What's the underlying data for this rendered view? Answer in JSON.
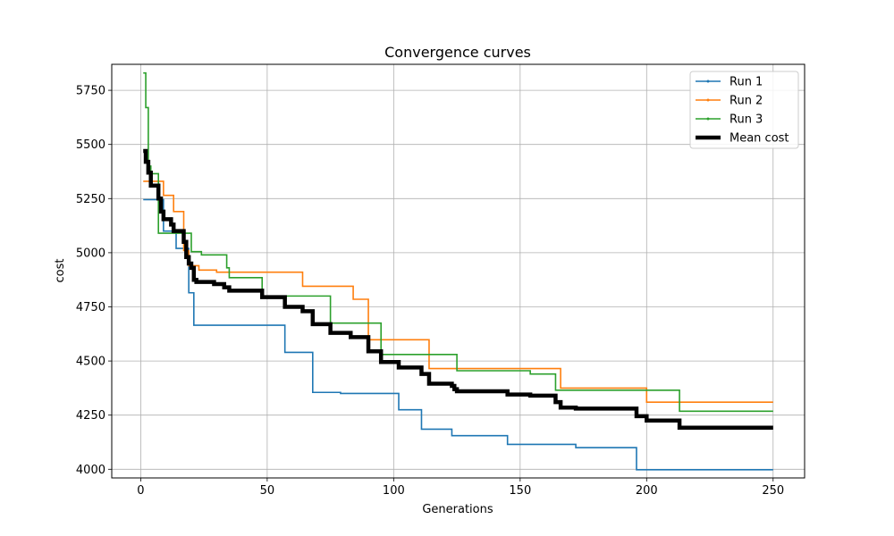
{
  "chart_data": {
    "type": "line",
    "title": "Convergence curves",
    "xlabel": "Generations",
    "ylabel": "cost",
    "xlim": [
      -11.45,
      262.45
    ],
    "ylim": [
      3960,
      5870
    ],
    "xticks": [
      0,
      50,
      100,
      150,
      200,
      250
    ],
    "yticks": [
      4000,
      4250,
      4500,
      4750,
      5000,
      5250,
      5500,
      5750
    ],
    "grid": true,
    "legend_position": "top-right",
    "series": [
      {
        "name": "Run 1",
        "color": "#1f77b4",
        "style": "step",
        "points": [
          [
            1,
            5245
          ],
          [
            8,
            5245
          ],
          [
            9,
            5100
          ],
          [
            13,
            5100
          ],
          [
            14,
            5020
          ],
          [
            18,
            5020
          ],
          [
            19,
            4815
          ],
          [
            20,
            4815
          ],
          [
            21,
            4665
          ],
          [
            56,
            4665
          ],
          [
            57,
            4540
          ],
          [
            67,
            4540
          ],
          [
            68,
            4355
          ],
          [
            78,
            4355
          ],
          [
            79,
            4350
          ],
          [
            101,
            4350
          ],
          [
            102,
            4275
          ],
          [
            110,
            4275
          ],
          [
            111,
            4185
          ],
          [
            122,
            4185
          ],
          [
            123,
            4155
          ],
          [
            144,
            4155
          ],
          [
            145,
            4115
          ],
          [
            171,
            4115
          ],
          [
            172,
            4100
          ],
          [
            195,
            4100
          ],
          [
            196,
            3998
          ],
          [
            250,
            3998
          ]
        ]
      },
      {
        "name": "Run 2",
        "color": "#ff7f0e",
        "style": "step",
        "points": [
          [
            1,
            5330
          ],
          [
            8,
            5330
          ],
          [
            9,
            5265
          ],
          [
            12,
            5265
          ],
          [
            13,
            5190
          ],
          [
            16,
            5190
          ],
          [
            17,
            5010
          ],
          [
            18,
            5010
          ],
          [
            19,
            4940
          ],
          [
            22,
            4940
          ],
          [
            23,
            4920
          ],
          [
            29,
            4920
          ],
          [
            30,
            4910
          ],
          [
            63,
            4910
          ],
          [
            64,
            4845
          ],
          [
            83,
            4845
          ],
          [
            84,
            4785
          ],
          [
            89,
            4785
          ],
          [
            90,
            4598
          ],
          [
            113,
            4598
          ],
          [
            114,
            4465
          ],
          [
            165,
            4465
          ],
          [
            166,
            4375
          ],
          [
            199,
            4375
          ],
          [
            200,
            4310
          ],
          [
            250,
            4310
          ]
        ]
      },
      {
        "name": "Run 3",
        "color": "#2ca02c",
        "style": "step",
        "points": [
          [
            1,
            5830
          ],
          [
            2,
            5670
          ],
          [
            3,
            5400
          ],
          [
            4,
            5365
          ],
          [
            6,
            5365
          ],
          [
            7,
            5090
          ],
          [
            19,
            5090
          ],
          [
            20,
            5005
          ],
          [
            23,
            5005
          ],
          [
            24,
            4990
          ],
          [
            33,
            4990
          ],
          [
            34,
            4930
          ],
          [
            35,
            4885
          ],
          [
            47,
            4885
          ],
          [
            48,
            4800
          ],
          [
            74,
            4800
          ],
          [
            75,
            4675
          ],
          [
            94,
            4675
          ],
          [
            95,
            4530
          ],
          [
            124,
            4530
          ],
          [
            125,
            4455
          ],
          [
            153,
            4455
          ],
          [
            154,
            4440
          ],
          [
            163,
            4440
          ],
          [
            164,
            4365
          ],
          [
            212,
            4365
          ],
          [
            213,
            4268
          ],
          [
            250,
            4268
          ]
        ]
      },
      {
        "name": "Mean cost",
        "color": "#000000",
        "style": "step",
        "points": [
          [
            1,
            5470
          ],
          [
            2,
            5420
          ],
          [
            3,
            5370
          ],
          [
            4,
            5310
          ],
          [
            6,
            5310
          ],
          [
            7,
            5250
          ],
          [
            8,
            5190
          ],
          [
            9,
            5155
          ],
          [
            11,
            5155
          ],
          [
            12,
            5130
          ],
          [
            13,
            5100
          ],
          [
            16,
            5100
          ],
          [
            17,
            5050
          ],
          [
            18,
            4980
          ],
          [
            19,
            4950
          ],
          [
            20,
            4930
          ],
          [
            21,
            4875
          ],
          [
            22,
            4865
          ],
          [
            28,
            4865
          ],
          [
            29,
            4855
          ],
          [
            32,
            4855
          ],
          [
            33,
            4840
          ],
          [
            35,
            4825
          ],
          [
            47,
            4825
          ],
          [
            48,
            4795
          ],
          [
            56,
            4795
          ],
          [
            57,
            4750
          ],
          [
            63,
            4750
          ],
          [
            64,
            4730
          ],
          [
            67,
            4730
          ],
          [
            68,
            4670
          ],
          [
            74,
            4670
          ],
          [
            75,
            4630
          ],
          [
            82,
            4630
          ],
          [
            83,
            4610
          ],
          [
            89,
            4610
          ],
          [
            90,
            4545
          ],
          [
            94,
            4545
          ],
          [
            95,
            4495
          ],
          [
            101,
            4495
          ],
          [
            102,
            4470
          ],
          [
            110,
            4470
          ],
          [
            111,
            4440
          ],
          [
            113,
            4440
          ],
          [
            114,
            4395
          ],
          [
            122,
            4395
          ],
          [
            123,
            4385
          ],
          [
            124,
            4370
          ],
          [
            125,
            4360
          ],
          [
            144,
            4360
          ],
          [
            145,
            4345
          ],
          [
            153,
            4345
          ],
          [
            154,
            4340
          ],
          [
            163,
            4340
          ],
          [
            164,
            4310
          ],
          [
            165,
            4310
          ],
          [
            166,
            4285
          ],
          [
            171,
            4285
          ],
          [
            172,
            4280
          ],
          [
            195,
            4280
          ],
          [
            196,
            4245
          ],
          [
            199,
            4245
          ],
          [
            200,
            4225
          ],
          [
            212,
            4225
          ],
          [
            213,
            4192
          ],
          [
            250,
            4192
          ]
        ]
      }
    ]
  }
}
